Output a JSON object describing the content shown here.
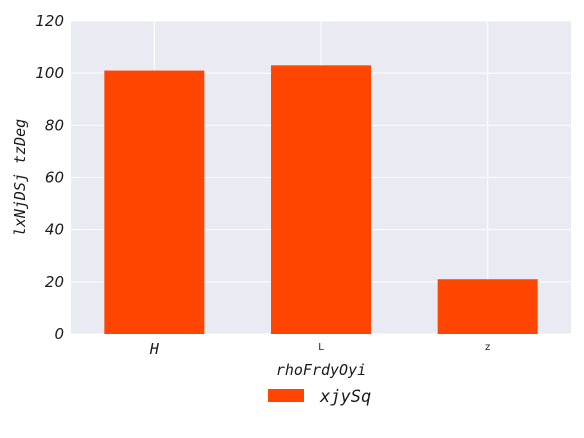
{
  "chart_data": {
    "type": "bar",
    "categories": [
      "H",
      "L",
      "z"
    ],
    "series": [
      {
        "name": "xjySq",
        "values": [
          101,
          103,
          21
        ]
      }
    ],
    "xlabel": "rhoFrdyOyi",
    "ylabel": "lxNjDSj tzDeg",
    "ylim": [
      0,
      120
    ],
    "yticks": [
      0,
      20,
      40,
      60,
      80,
      100,
      120
    ],
    "grid": true,
    "legend_position": "bottom-center",
    "colors": {
      "bar": "#ff4500",
      "plot_background": "#eaeaf2",
      "grid": "#ffffff"
    }
  }
}
